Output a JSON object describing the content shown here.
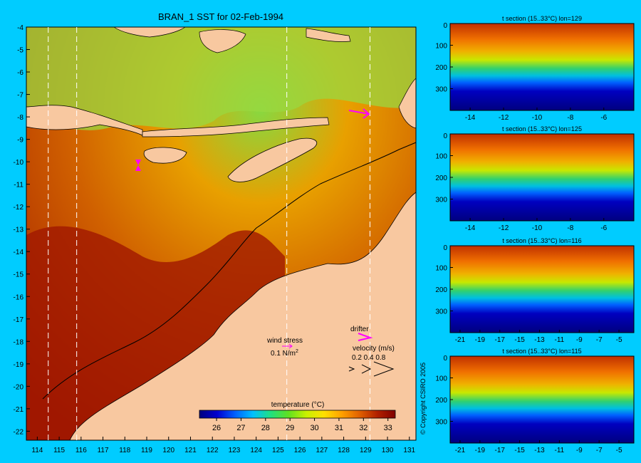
{
  "chart_data": [
    {
      "type": "heatmap",
      "title": "BRAN_1 SST for 02-Feb-1994",
      "x_ticks": [
        114,
        115,
        116,
        117,
        118,
        119,
        120,
        121,
        122,
        123,
        124,
        125,
        126,
        127,
        128,
        129,
        130,
        131
      ],
      "y_ticks": [
        -4,
        -5,
        -6,
        -7,
        -8,
        -9,
        -10,
        -11,
        -12,
        -13,
        -14,
        -15,
        -16,
        -17,
        -18,
        -19,
        -20,
        -21,
        -22
      ],
      "xlim": [
        113.5,
        131.3
      ],
      "ylim": [
        -22.4,
        -4
      ],
      "section_lines_lon": [
        114.5,
        115.8,
        125.4,
        129.2
      ],
      "colorbar": {
        "label": "temperature (°C)",
        "ticks": [
          26,
          27,
          28,
          29,
          30,
          31,
          32,
          33
        ],
        "range": [
          25.3,
          33.3
        ],
        "colors": [
          "#00007f",
          "#0000d0",
          "#0060ff",
          "#00c0ff",
          "#20e080",
          "#60e020",
          "#c8f000",
          "#ffe000",
          "#ffa000",
          "#e06000",
          "#b02000",
          "#800000"
        ]
      },
      "annotations": {
        "wind_stress_label": "wind stress",
        "wind_stress_value": "0.1 N/m",
        "wind_stress_sup": "2",
        "drifter_label": "drifter",
        "velocity_label": "velocity (m/s)",
        "velocity_values": "0.2 0.4 0.8"
      }
    },
    {
      "type": "heatmap",
      "title": "t section (15..33°C) lon=129",
      "x_ticks": [
        -14,
        -12,
        -10,
        -8,
        -6
      ],
      "xlim": [
        -15.2,
        -4.2
      ],
      "y_ticks": [
        100,
        200,
        300
      ],
      "ylim": [
        0,
        400
      ],
      "bottom_depth": [
        400,
        400,
        400,
        400,
        400,
        400,
        400,
        400,
        400,
        400,
        400,
        400,
        400,
        400,
        400,
        400,
        400,
        400,
        400,
        400,
        400
      ],
      "thermocline_depth": [
        150,
        150,
        150,
        150,
        150,
        150,
        150,
        150,
        150,
        150,
        150,
        150,
        160,
        165,
        160,
        150,
        140,
        140,
        145,
        150,
        150
      ]
    },
    {
      "type": "heatmap",
      "title": "t section (15..33°C) lon=125",
      "x_ticks": [
        -14,
        -12,
        -10,
        -8,
        -6
      ],
      "xlim": [
        -15.2,
        -4.2
      ],
      "y_ticks": [
        100,
        200,
        300
      ],
      "ylim": [
        0,
        400
      ],
      "bottom_depth": [
        400,
        400,
        400,
        400,
        400,
        400,
        400,
        400,
        400,
        400,
        400,
        400,
        400,
        400,
        400,
        400,
        400,
        400,
        400,
        400,
        400
      ],
      "thermocline_depth": [
        170,
        170,
        170,
        170,
        170,
        170,
        170,
        170,
        170,
        165,
        160,
        150,
        150,
        150,
        150,
        150,
        150,
        150,
        150,
        150,
        150
      ]
    },
    {
      "type": "heatmap",
      "title": "t section (15..33°C) lon=116",
      "x_ticks": [
        -21,
        -19,
        -17,
        -15,
        -13,
        -11,
        -9,
        -7,
        -5
      ],
      "xlim": [
        -22.0,
        -3.5
      ],
      "y_ticks": [
        100,
        200,
        300
      ],
      "ylim": [
        0,
        400
      ],
      "bottom_depth": [
        400,
        400,
        400,
        400,
        400,
        400,
        400,
        400,
        400,
        400,
        400,
        400,
        400,
        400,
        400,
        400,
        400,
        400,
        400,
        400,
        400
      ],
      "thermocline_depth": [
        160,
        165,
        170,
        165,
        160,
        155,
        150,
        145,
        150,
        155,
        160,
        165,
        165,
        160,
        155,
        150,
        150,
        150,
        150,
        150,
        150
      ]
    },
    {
      "type": "heatmap",
      "title": "t section (15..33°C) lon=115",
      "x_ticks": [
        -21,
        -19,
        -17,
        -15,
        -13,
        -11,
        -9,
        -7,
        -5
      ],
      "xlim": [
        -22.0,
        -3.5
      ],
      "y_ticks": [
        100,
        200,
        300
      ],
      "ylim": [
        0,
        400
      ],
      "bottom_depth": [
        400,
        400,
        400,
        400,
        400,
        400,
        400,
        400,
        400,
        400,
        400,
        400,
        400,
        400,
        400,
        400,
        400,
        400,
        400,
        400,
        400
      ],
      "thermocline_depth": [
        170,
        175,
        180,
        175,
        170,
        165,
        160,
        165,
        170,
        175,
        175,
        170,
        165,
        165,
        165,
        165,
        160,
        160,
        160,
        160,
        160
      ]
    }
  ],
  "copyright": "© Copyright CSIRO 2005"
}
